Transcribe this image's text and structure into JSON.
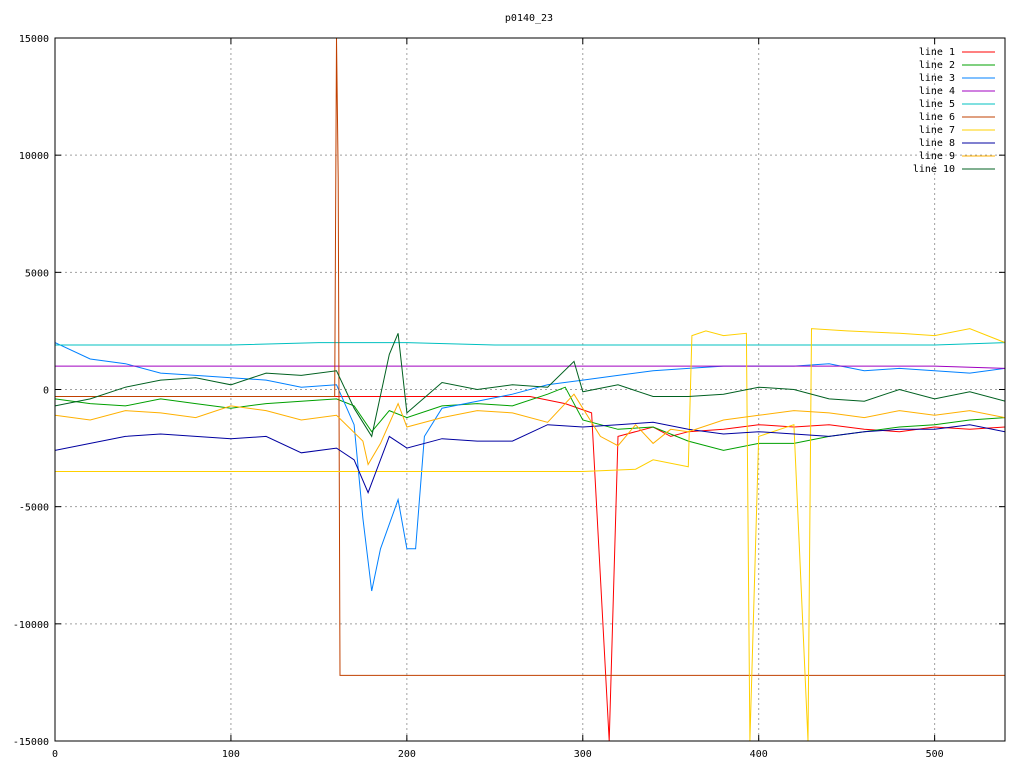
{
  "chart_data": {
    "type": "line",
    "title": "p0140_23",
    "xlabel": "",
    "ylabel": "",
    "xlim": [
      0,
      540
    ],
    "ylim": [
      -15000,
      15000
    ],
    "grid": true,
    "legend_position": "top-right",
    "x_ticks": [
      0,
      100,
      200,
      300,
      400,
      500
    ],
    "y_ticks": [
      -15000,
      -10000,
      -5000,
      0,
      5000,
      10000,
      15000
    ],
    "x_tick_labels": [
      "0",
      "100",
      "200",
      "300",
      "400",
      "500"
    ],
    "y_tick_labels": [
      "-15000",
      "-10000",
      "-5000",
      "0",
      "5000",
      "10000",
      "15000"
    ],
    "series": [
      {
        "name": "line 1",
        "color": "#ff0000",
        "points": [
          [
            0,
            -300
          ],
          [
            40,
            -300
          ],
          [
            80,
            -300
          ],
          [
            120,
            -300
          ],
          [
            160,
            -300
          ],
          [
            200,
            -300
          ],
          [
            240,
            -300
          ],
          [
            270,
            -300
          ],
          [
            290,
            -600
          ],
          [
            305,
            -1000
          ],
          [
            315,
            -15000
          ],
          [
            320,
            -2000
          ],
          [
            340,
            -1600
          ],
          [
            350,
            -2000
          ],
          [
            360,
            -1800
          ],
          [
            380,
            -1700
          ],
          [
            400,
            -1500
          ],
          [
            420,
            -1600
          ],
          [
            440,
            -1500
          ],
          [
            460,
            -1700
          ],
          [
            480,
            -1800
          ],
          [
            500,
            -1600
          ],
          [
            520,
            -1700
          ],
          [
            540,
            -1600
          ]
        ]
      },
      {
        "name": "line 2",
        "color": "#00a000",
        "points": [
          [
            0,
            -400
          ],
          [
            20,
            -600
          ],
          [
            40,
            -700
          ],
          [
            60,
            -400
          ],
          [
            80,
            -600
          ],
          [
            100,
            -800
          ],
          [
            120,
            -600
          ],
          [
            140,
            -500
          ],
          [
            160,
            -400
          ],
          [
            170,
            -700
          ],
          [
            180,
            -1800
          ],
          [
            190,
            -900
          ],
          [
            200,
            -1200
          ],
          [
            220,
            -700
          ],
          [
            240,
            -600
          ],
          [
            260,
            -700
          ],
          [
            280,
            -200
          ],
          [
            290,
            100
          ],
          [
            300,
            -1300
          ],
          [
            320,
            -1700
          ],
          [
            340,
            -1600
          ],
          [
            360,
            -2200
          ],
          [
            380,
            -2600
          ],
          [
            400,
            -2300
          ],
          [
            420,
            -2300
          ],
          [
            440,
            -2000
          ],
          [
            460,
            -1800
          ],
          [
            480,
            -1600
          ],
          [
            500,
            -1500
          ],
          [
            520,
            -1300
          ],
          [
            540,
            -1200
          ]
        ]
      },
      {
        "name": "line 3",
        "color": "#0080ff",
        "points": [
          [
            0,
            2000
          ],
          [
            20,
            1300
          ],
          [
            40,
            1100
          ],
          [
            60,
            700
          ],
          [
            80,
            600
          ],
          [
            100,
            500
          ],
          [
            120,
            400
          ],
          [
            140,
            100
          ],
          [
            160,
            200
          ],
          [
            170,
            -1500
          ],
          [
            175,
            -5500
          ],
          [
            180,
            -8600
          ],
          [
            185,
            -6800
          ],
          [
            195,
            -4700
          ],
          [
            200,
            -6800
          ],
          [
            205,
            -6800
          ],
          [
            210,
            -2000
          ],
          [
            220,
            -800
          ],
          [
            240,
            -500
          ],
          [
            260,
            -200
          ],
          [
            280,
            200
          ],
          [
            300,
            400
          ],
          [
            320,
            600
          ],
          [
            340,
            800
          ],
          [
            360,
            900
          ],
          [
            380,
            1000
          ],
          [
            400,
            1000
          ],
          [
            420,
            1000
          ],
          [
            440,
            1100
          ],
          [
            460,
            800
          ],
          [
            480,
            900
          ],
          [
            500,
            800
          ],
          [
            520,
            700
          ],
          [
            540,
            900
          ]
        ]
      },
      {
        "name": "line 4",
        "color": "#a000c0",
        "points": [
          [
            0,
            1000
          ],
          [
            50,
            1000
          ],
          [
            100,
            1000
          ],
          [
            150,
            1000
          ],
          [
            200,
            1000
          ],
          [
            250,
            1000
          ],
          [
            300,
            1000
          ],
          [
            350,
            1000
          ],
          [
            400,
            1000
          ],
          [
            450,
            1000
          ],
          [
            500,
            1000
          ],
          [
            540,
            900
          ]
        ]
      },
      {
        "name": "line 5",
        "color": "#00c0c0",
        "points": [
          [
            0,
            1900
          ],
          [
            50,
            1900
          ],
          [
            100,
            1900
          ],
          [
            150,
            2000
          ],
          [
            200,
            2000
          ],
          [
            250,
            1900
          ],
          [
            300,
            1900
          ],
          [
            350,
            1900
          ],
          [
            400,
            1900
          ],
          [
            450,
            1900
          ],
          [
            500,
            1900
          ],
          [
            540,
            2000
          ]
        ]
      },
      {
        "name": "line 6",
        "color": "#c04000",
        "points": [
          [
            0,
            -300
          ],
          [
            100,
            -300
          ],
          [
            159,
            -300
          ],
          [
            160,
            15000
          ],
          [
            161,
            9000
          ],
          [
            162,
            -12200
          ],
          [
            200,
            -12200
          ],
          [
            250,
            -12200
          ],
          [
            300,
            -12200
          ],
          [
            350,
            -12200
          ],
          [
            400,
            -12200
          ],
          [
            450,
            -12200
          ],
          [
            500,
            -12200
          ],
          [
            540,
            -12200
          ]
        ]
      },
      {
        "name": "line 7",
        "color": "#ffd000",
        "points": [
          [
            0,
            -3500
          ],
          [
            100,
            -3500
          ],
          [
            200,
            -3500
          ],
          [
            300,
            -3500
          ],
          [
            330,
            -3400
          ],
          [
            340,
            -3000
          ],
          [
            360,
            -3300
          ],
          [
            362,
            2300
          ],
          [
            370,
            2500
          ],
          [
            380,
            2300
          ],
          [
            393,
            2400
          ],
          [
            395,
            -15000
          ],
          [
            400,
            -2000
          ],
          [
            420,
            -1500
          ],
          [
            428,
            -15000
          ],
          [
            430,
            2600
          ],
          [
            450,
            2500
          ],
          [
            480,
            2400
          ],
          [
            500,
            2300
          ],
          [
            520,
            2600
          ],
          [
            540,
            2000
          ]
        ]
      },
      {
        "name": "line 8",
        "color": "#0000a0",
        "points": [
          [
            0,
            -2600
          ],
          [
            20,
            -2300
          ],
          [
            40,
            -2000
          ],
          [
            60,
            -1900
          ],
          [
            80,
            -2000
          ],
          [
            100,
            -2100
          ],
          [
            120,
            -2000
          ],
          [
            140,
            -2700
          ],
          [
            160,
            -2500
          ],
          [
            170,
            -3000
          ],
          [
            178,
            -4400
          ],
          [
            190,
            -2000
          ],
          [
            200,
            -2500
          ],
          [
            220,
            -2100
          ],
          [
            240,
            -2200
          ],
          [
            260,
            -2200
          ],
          [
            280,
            -1500
          ],
          [
            300,
            -1600
          ],
          [
            320,
            -1500
          ],
          [
            340,
            -1400
          ],
          [
            360,
            -1700
          ],
          [
            380,
            -1900
          ],
          [
            400,
            -1800
          ],
          [
            420,
            -1900
          ],
          [
            440,
            -2000
          ],
          [
            460,
            -1800
          ],
          [
            480,
            -1700
          ],
          [
            500,
            -1700
          ],
          [
            520,
            -1500
          ],
          [
            540,
            -1800
          ]
        ]
      },
      {
        "name": "line 9",
        "color": "#ffb000",
        "points": [
          [
            0,
            -1100
          ],
          [
            20,
            -1300
          ],
          [
            40,
            -900
          ],
          [
            60,
            -1000
          ],
          [
            80,
            -1200
          ],
          [
            100,
            -700
          ],
          [
            120,
            -900
          ],
          [
            140,
            -1300
          ],
          [
            160,
            -1100
          ],
          [
            175,
            -2200
          ],
          [
            178,
            -3200
          ],
          [
            185,
            -2300
          ],
          [
            195,
            -600
          ],
          [
            200,
            -1600
          ],
          [
            220,
            -1200
          ],
          [
            240,
            -900
          ],
          [
            260,
            -1000
          ],
          [
            280,
            -1400
          ],
          [
            295,
            -200
          ],
          [
            310,
            -2000
          ],
          [
            320,
            -2400
          ],
          [
            330,
            -1500
          ],
          [
            340,
            -2300
          ],
          [
            350,
            -1700
          ],
          [
            360,
            -1800
          ],
          [
            380,
            -1300
          ],
          [
            400,
            -1100
          ],
          [
            420,
            -900
          ],
          [
            440,
            -1000
          ],
          [
            460,
            -1200
          ],
          [
            480,
            -900
          ],
          [
            500,
            -1100
          ],
          [
            520,
            -900
          ],
          [
            540,
            -1200
          ]
        ]
      },
      {
        "name": "line 10",
        "color": "#006020",
        "points": [
          [
            0,
            -700
          ],
          [
            20,
            -400
          ],
          [
            40,
            100
          ],
          [
            60,
            400
          ],
          [
            80,
            500
          ],
          [
            100,
            200
          ],
          [
            120,
            700
          ],
          [
            140,
            600
          ],
          [
            160,
            800
          ],
          [
            170,
            -800
          ],
          [
            180,
            -2000
          ],
          [
            190,
            1500
          ],
          [
            195,
            2400
          ],
          [
            200,
            -1000
          ],
          [
            220,
            300
          ],
          [
            240,
            0
          ],
          [
            260,
            200
          ],
          [
            280,
            100
          ],
          [
            295,
            1200
          ],
          [
            300,
            -100
          ],
          [
            320,
            200
          ],
          [
            340,
            -300
          ],
          [
            360,
            -300
          ],
          [
            380,
            -200
          ],
          [
            400,
            100
          ],
          [
            420,
            0
          ],
          [
            440,
            -400
          ],
          [
            460,
            -500
          ],
          [
            480,
            0
          ],
          [
            500,
            -400
          ],
          [
            520,
            -100
          ],
          [
            540,
            -500
          ]
        ]
      }
    ]
  }
}
